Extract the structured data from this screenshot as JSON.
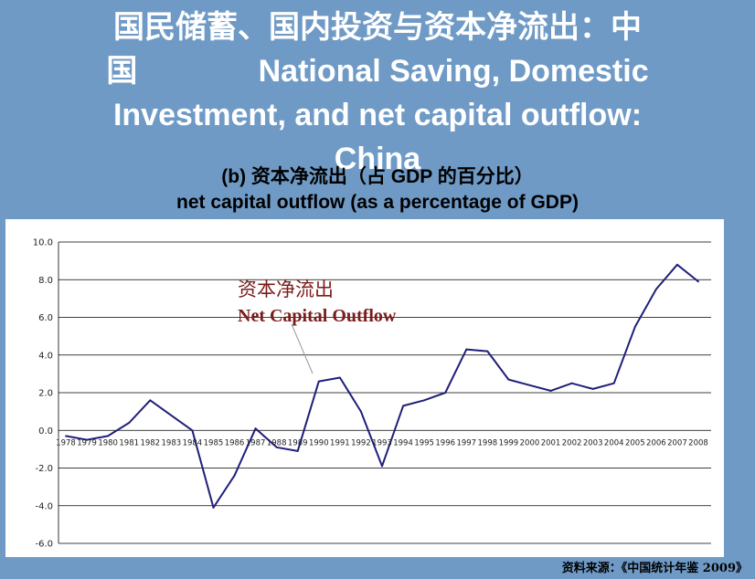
{
  "title": {
    "line1": "国民储蓄、国内投资与资本净流出：中",
    "line2": "国              National Saving, Domestic",
    "line3": "Investment, and net capital outflow:",
    "line4": "China"
  },
  "subtitle": {
    "cn": "(b) 资本净流出（占 GDP 的百分比）",
    "en": "net capital outflow (as a percentage of GDP)"
  },
  "annotation": {
    "cn": "资本净流出",
    "en": "Net Capital Outflow"
  },
  "source": "资料来源：《中国统计年鉴 2009》",
  "colors": {
    "background": "#6f9ac6",
    "line": "#1f1f7a",
    "annotation": "#7b1c1c"
  },
  "chart_data": {
    "type": "line",
    "x": [
      "1978",
      "1979",
      "1980",
      "1981",
      "1982",
      "1983",
      "1984",
      "1985",
      "1986",
      "1987",
      "1988",
      "1989",
      "1990",
      "1991",
      "1992",
      "1993",
      "1994",
      "1995",
      "1996",
      "1997",
      "1998",
      "1999",
      "2000",
      "2001",
      "2002",
      "2003",
      "2004",
      "2005",
      "2006",
      "2007",
      "2008"
    ],
    "series": [
      {
        "name": "资本净流出 Net Capital Outflow",
        "values": [
          -0.3,
          -0.5,
          -0.3,
          0.4,
          1.6,
          0.8,
          0.0,
          -4.1,
          -2.4,
          0.1,
          -0.9,
          -1.1,
          2.6,
          2.8,
          1.0,
          -1.9,
          1.3,
          1.6,
          2.0,
          4.3,
          4.2,
          2.7,
          2.4,
          2.1,
          2.5,
          2.2,
          2.5,
          5.5,
          7.5,
          8.8,
          7.9
        ]
      }
    ],
    "ylim": [
      -6.0,
      10.0
    ],
    "yticks": [
      "-6.0",
      "-4.0",
      "-2.0",
      "0.0",
      "2.0",
      "4.0",
      "6.0",
      "8.0",
      "10.0"
    ],
    "grid": true,
    "legend": "none"
  }
}
